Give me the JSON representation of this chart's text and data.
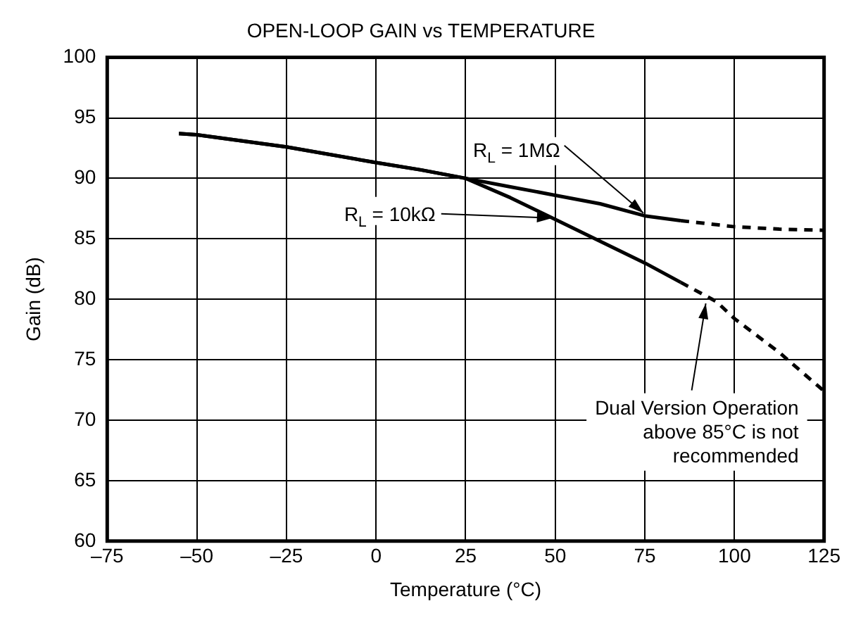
{
  "chart_data": {
    "type": "line",
    "title": "OPEN-LOOP GAIN vs TEMPERATURE",
    "xlabel": "Temperature (°C)",
    "ylabel": "Gain (dB)",
    "xlim": [
      -75,
      125
    ],
    "xticks": [
      {
        "value": -75,
        "label": "–75"
      },
      {
        "value": -50,
        "label": "–50"
      },
      {
        "value": -25,
        "label": "–25"
      },
      0,
      25,
      50,
      75,
      100,
      125
    ],
    "ylim": [
      60,
      100
    ],
    "yticks": [
      60,
      65,
      70,
      75,
      80,
      85,
      90,
      95,
      100
    ],
    "grid": true,
    "legend": false,
    "marker": "none",
    "series": [
      {
        "name": "R$_{L}$ = 10kΩ",
        "color": "#000000",
        "line_style": "solid",
        "x": [
          -55,
          -50,
          -25,
          0,
          12.5,
          25,
          37.5,
          50,
          62.5,
          75,
          85
        ],
        "values": [
          93.7,
          93.6,
          92.6,
          91.3,
          90.7,
          90.0,
          88.4,
          86.6,
          84.8,
          83.0,
          81.4
        ]
      },
      {
        "color": "#000000",
        "line_style": "dashed",
        "x": [
          85,
          95,
          100,
          112.5,
          125
        ],
        "values": [
          81.4,
          79.8,
          78.4,
          75.6,
          72.4
        ]
      },
      {
        "name": "R$_{L}$ = 1MΩ",
        "color": "#000000",
        "line_style": "solid",
        "x": [
          -55,
          -50,
          -25,
          0,
          12.5,
          25,
          37.5,
          50,
          62.5,
          75,
          85
        ],
        "values": [
          93.7,
          93.6,
          92.6,
          91.3,
          90.7,
          90.0,
          89.3,
          88.6,
          87.9,
          86.9,
          86.5
        ]
      },
      {
        "color": "#000000",
        "line_style": "dashed",
        "x": [
          85,
          100,
          112.5,
          125
        ],
        "values": [
          86.5,
          86.0,
          85.8,
          85.7
        ]
      }
    ],
    "annotations": [
      {
        "text": "Dual Version Operation\nabove 85°C is not\nrecommended",
        "x": 92,
        "y": 80
      }
    ]
  }
}
